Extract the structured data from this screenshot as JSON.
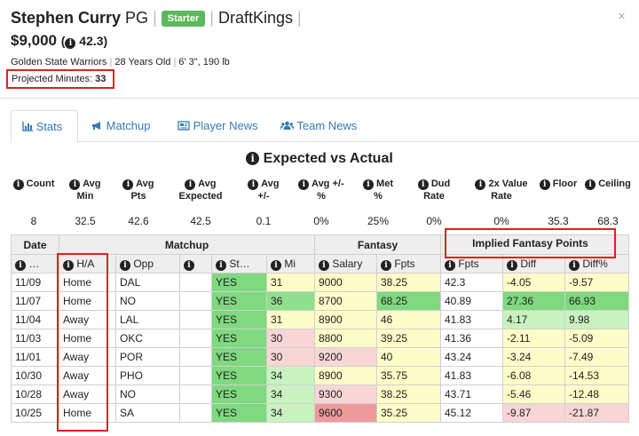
{
  "header": {
    "name": "Stephen Curry",
    "position": "PG",
    "sep": "|",
    "badge": "Starter",
    "site": "DraftKings",
    "close": "×",
    "salary": "$9,000",
    "proj_points": "42.3",
    "team": "Golden State Warriors",
    "age": "28 Years Old",
    "size": "6' 3\", 190 lb",
    "proj_minutes_label": "Projected Minutes:",
    "proj_minutes": "33"
  },
  "tabs": [
    {
      "label": "Stats",
      "icon": "bar-chart-icon"
    },
    {
      "label": "Matchup",
      "icon": "megaphone-icon"
    },
    {
      "label": "Player News",
      "icon": "newspaper-icon"
    },
    {
      "label": "Team News",
      "icon": "users-icon"
    }
  ],
  "section_title": "Expected vs Actual",
  "summary": [
    {
      "label1": "Count",
      "label2": "",
      "value": "8"
    },
    {
      "label1": "Avg",
      "label2": "Min",
      "value": "32.5"
    },
    {
      "label1": "Avg",
      "label2": "Pts",
      "value": "42.6"
    },
    {
      "label1": "Avg",
      "label2": "Expected",
      "value": "42.5"
    },
    {
      "label1": "Avg",
      "label2": "+/-",
      "value": "0.1"
    },
    {
      "label1": "Avg +/-",
      "label2": "%",
      "value": "0%"
    },
    {
      "label1": "Met",
      "label2": "%",
      "value": "25%"
    },
    {
      "label1": "Dud",
      "label2": "Rate",
      "value": "0%"
    },
    {
      "label1": "2x Value",
      "label2": "Rate",
      "value": "0%"
    },
    {
      "label1": "Floor",
      "label2": "",
      "value": "35.3"
    },
    {
      "label1": "Ceiling",
      "label2": "",
      "value": "68.3"
    }
  ],
  "table": {
    "groups": [
      "Date",
      "Matchup",
      "Fantasy",
      "Implied Fantasy Points"
    ],
    "subheaders": [
      "…",
      "H/A",
      "Opp",
      "",
      "St…",
      "Mi",
      "Salary",
      "Fpts",
      "Fpts",
      "Diff",
      "Diff%"
    ],
    "rows": [
      [
        "11/09",
        "Home",
        "DAL",
        "",
        "YES",
        "31",
        "9000",
        "38.25",
        "42.3",
        "-4.05",
        "-9.57"
      ],
      [
        "11/07",
        "Home",
        "NO",
        "",
        "YES",
        "36",
        "8700",
        "68.25",
        "40.89",
        "27.36",
        "66.93"
      ],
      [
        "11/04",
        "Away",
        "LAL",
        "",
        "YES",
        "31",
        "8900",
        "46",
        "41.83",
        "4.17",
        "9.98"
      ],
      [
        "11/03",
        "Home",
        "OKC",
        "",
        "YES",
        "30",
        "8800",
        "39.25",
        "41.36",
        "-2.11",
        "-5.09"
      ],
      [
        "11/01",
        "Away",
        "POR",
        "",
        "YES",
        "30",
        "9200",
        "40",
        "43.24",
        "-3.24",
        "-7.49"
      ],
      [
        "10/30",
        "Away",
        "PHO",
        "",
        "YES",
        "34",
        "8900",
        "35.75",
        "41.83",
        "-6.08",
        "-14.53"
      ],
      [
        "10/28",
        "Away",
        "NO",
        "",
        "YES",
        "34",
        "9300",
        "38.25",
        "43.71",
        "-5.46",
        "-12.48"
      ],
      [
        "10/25",
        "Home",
        "SA",
        "",
        "YES",
        "34",
        "9600",
        "35.25",
        "45.12",
        "-9.87",
        "-21.87"
      ]
    ],
    "cell_colors": [
      [
        "#fff",
        "#fff",
        "#fff",
        "#fff",
        "#7fd97f",
        "#fdfdc8",
        "#fdfdc8",
        "#fdfdc8",
        "#fff",
        "#fdfdc8",
        "#fdfdc8"
      ],
      [
        "#fff",
        "#fff",
        "#fff",
        "#fff",
        "#7fd97f",
        "#8fdf8f",
        "#fdfdc8",
        "#7fd97f",
        "#fff",
        "#7fd97f",
        "#7fd97f"
      ],
      [
        "#fff",
        "#fff",
        "#fff",
        "#fff",
        "#7fd97f",
        "#fdfdc8",
        "#fdfdc8",
        "#fdfdc8",
        "#fff",
        "#c8f2c0",
        "#c8f2c0"
      ],
      [
        "#fff",
        "#fff",
        "#fff",
        "#fff",
        "#7fd97f",
        "#f8d6d6",
        "#fdfdc8",
        "#fdfdc8",
        "#fff",
        "#fdfdc8",
        "#fdfdc8"
      ],
      [
        "#fff",
        "#fff",
        "#fff",
        "#fff",
        "#7fd97f",
        "#f8d6d6",
        "#f8d6d6",
        "#fdfdc8",
        "#fff",
        "#fdfdc8",
        "#fdfdc8"
      ],
      [
        "#fff",
        "#fff",
        "#fff",
        "#fff",
        "#7fd97f",
        "#c8f2c0",
        "#fdfdc8",
        "#fdfdc8",
        "#fff",
        "#fdfdc8",
        "#fdfdc8"
      ],
      [
        "#fff",
        "#fff",
        "#fff",
        "#fff",
        "#7fd97f",
        "#c8f2c0",
        "#f8d6d6",
        "#fdfdc8",
        "#fff",
        "#fdfdc8",
        "#fdfdc8"
      ],
      [
        "#fff",
        "#fff",
        "#fff",
        "#fff",
        "#7fd97f",
        "#c8f2c0",
        "#ee9a9a",
        "#fdfdc8",
        "#fff",
        "#f8d6d6",
        "#f8d6d6"
      ]
    ]
  },
  "colors": {
    "link": "#337ab7",
    "starter_badge": "#5cb85c",
    "highlight_box": "#e02020"
  }
}
